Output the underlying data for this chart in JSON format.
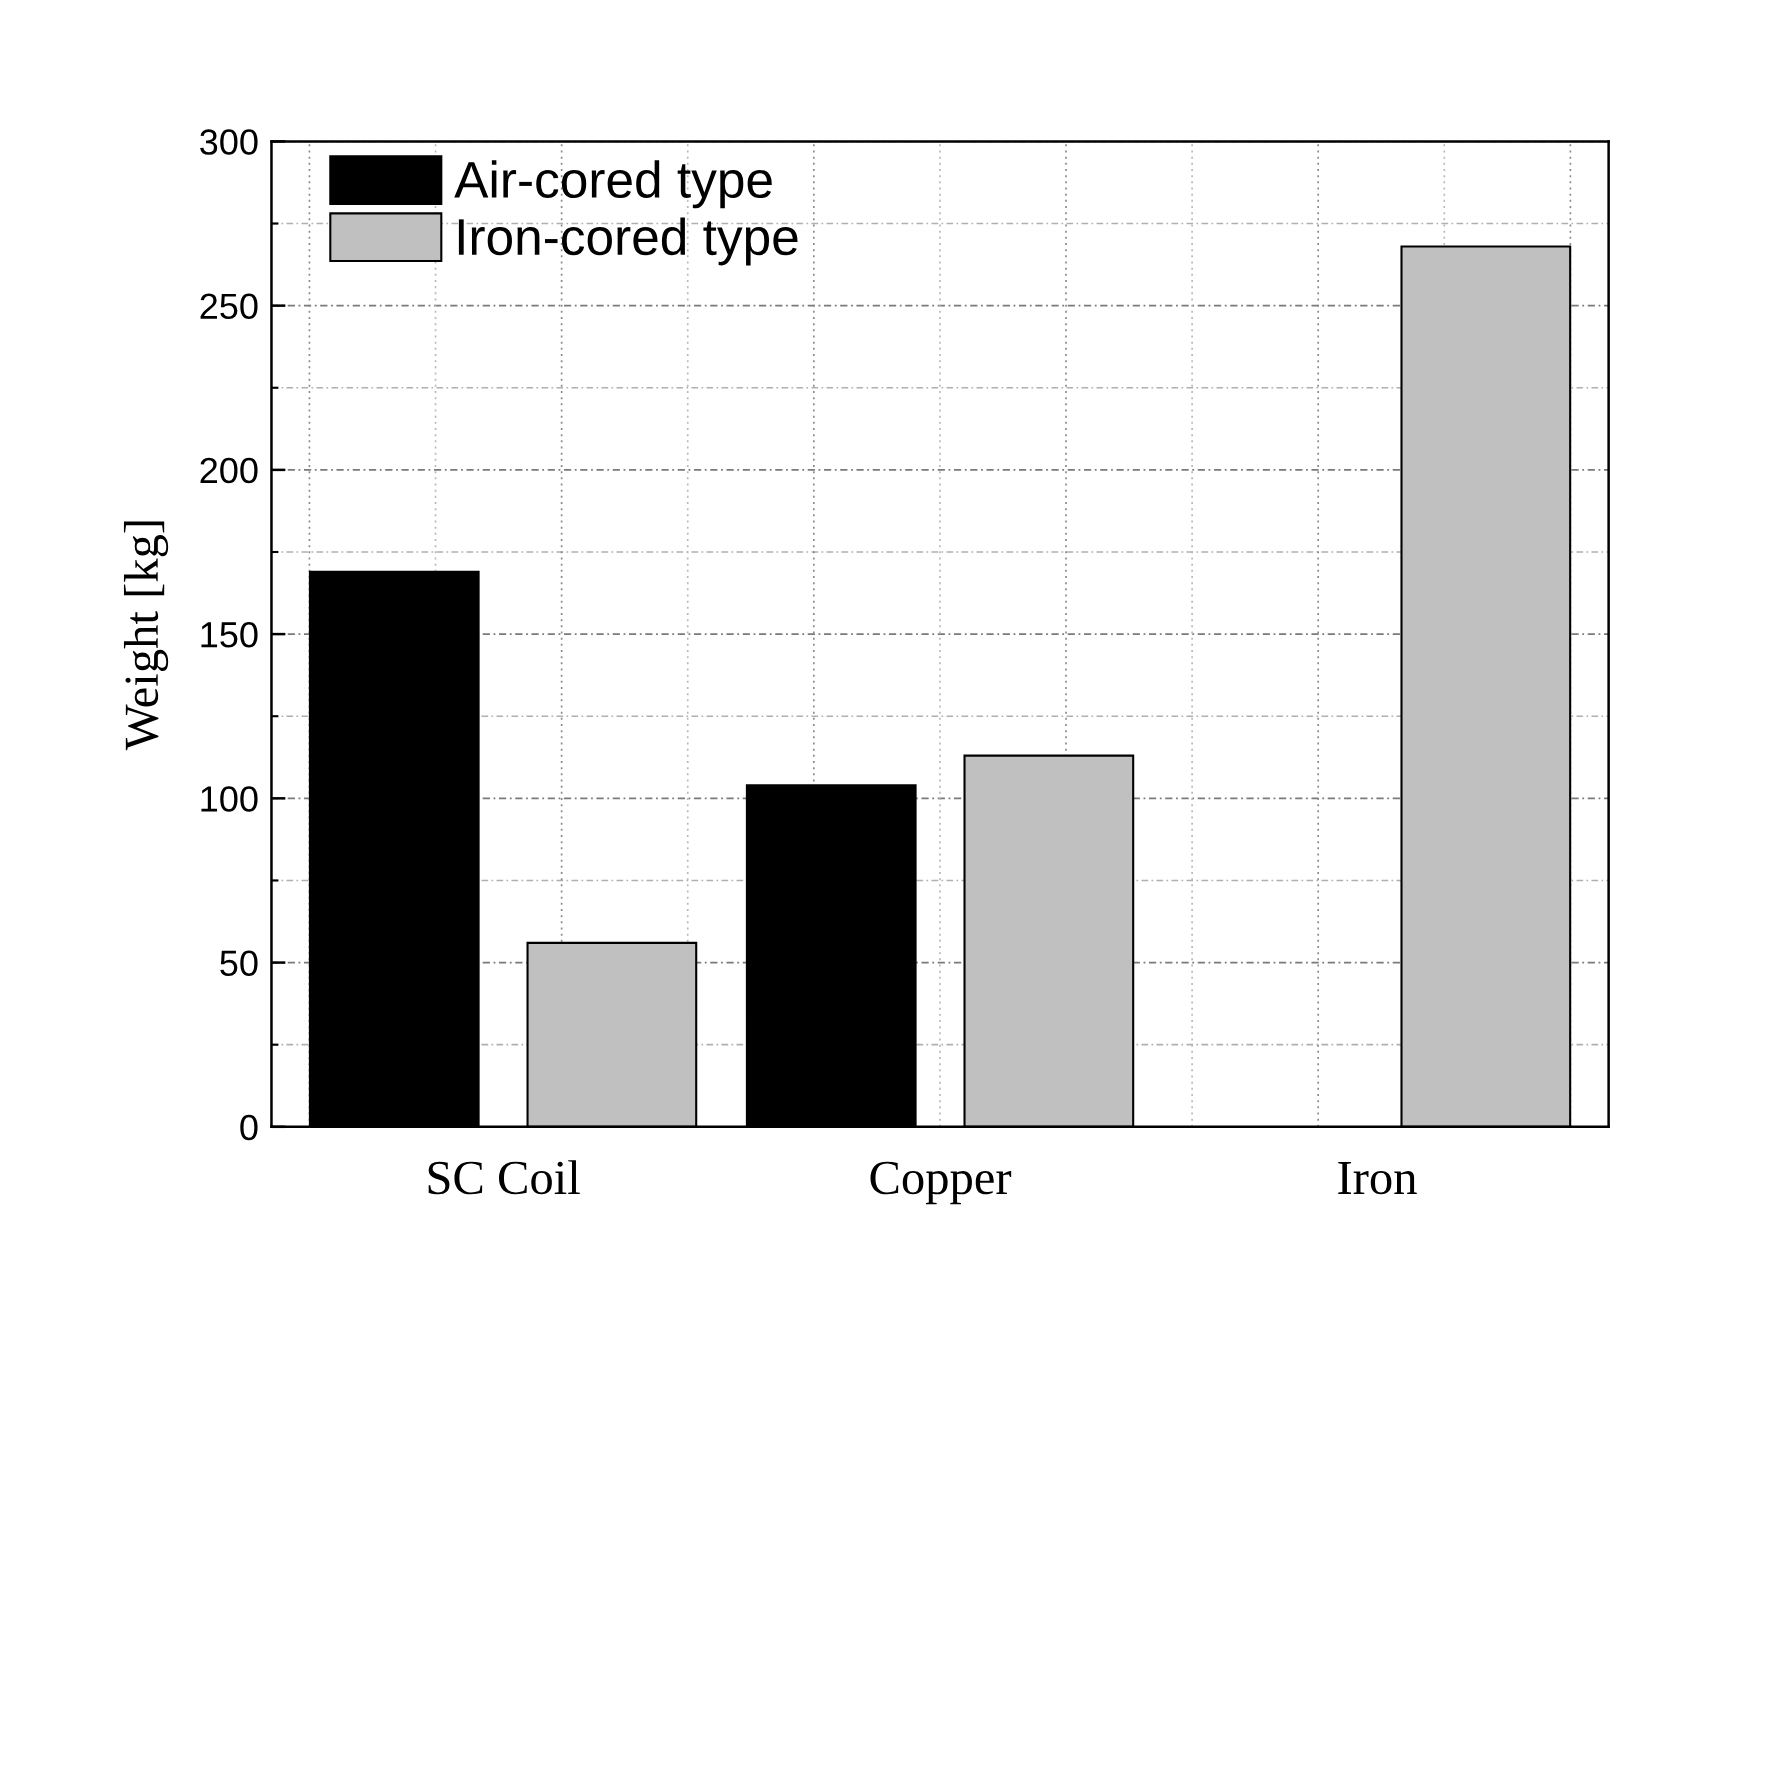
{
  "chart_data": {
    "type": "bar",
    "ylabel": "Weight [kg]",
    "categories": [
      "SC Coil",
      "Copper",
      "Iron"
    ],
    "series": [
      {
        "name": "Air-cored type",
        "color": "#000000",
        "values": [
          169,
          104,
          null
        ]
      },
      {
        "name": "Iron-cored type",
        "color": "#c0c0c0",
        "values": [
          56,
          113,
          268
        ]
      }
    ],
    "ylim": [
      0,
      300
    ],
    "yticks": [
      0,
      {
        "value": 25,
        "label": null
      },
      50,
      {
        "value": 75,
        "label": null
      },
      100,
      {
        "value": 125,
        "label": null
      },
      150,
      {
        "value": 175,
        "label": null
      },
      200,
      {
        "value": 225,
        "label": null
      },
      250,
      {
        "value": 275,
        "label": null
      },
      300
    ],
    "grid": true,
    "legend": "top left"
  }
}
